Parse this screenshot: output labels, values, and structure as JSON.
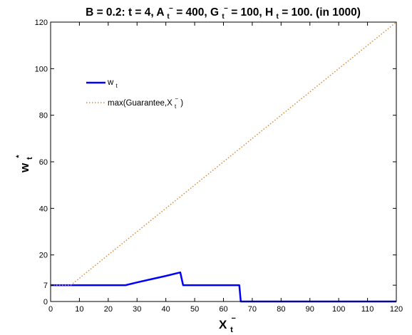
{
  "chart_data": {
    "type": "line",
    "title": {
      "parts": [
        {
          "t": "B = 0.2:   t = 4,  A"
        },
        {
          "t": "t",
          "sub": true
        },
        {
          "t": "−",
          "sup": true
        },
        {
          "t": " = 400,  G"
        },
        {
          "t": "t",
          "sub": true
        },
        {
          "t": "−",
          "sup": true
        },
        {
          "t": " = 100,  H"
        },
        {
          "t": "t",
          "sub": true
        },
        {
          "t": " = 100.  (in 1000)"
        }
      ]
    },
    "xlabel": {
      "main": "X",
      "sub": "t",
      "sup": "−"
    },
    "ylabel": {
      "main": "w",
      "sub": "t",
      "sup": "*"
    },
    "xlim": [
      0,
      120
    ],
    "ylim": [
      0,
      120
    ],
    "xticks": [
      0,
      10,
      20,
      30,
      40,
      50,
      60,
      70,
      80,
      90,
      100,
      110,
      120
    ],
    "yticks": [
      0,
      7,
      20,
      40,
      60,
      80,
      100,
      120
    ],
    "grid": false,
    "legend_position": "upper-left",
    "series": [
      {
        "legend": {
          "main": "w",
          "sub": "t"
        },
        "color": "#0000ff",
        "style": "solid",
        "x": [
          0,
          26,
          30,
          35,
          40,
          45,
          46,
          65.5,
          66,
          120
        ],
        "y": [
          7,
          7,
          8.2,
          9.6,
          11,
          12.5,
          7,
          7,
          0,
          0
        ]
      },
      {
        "legend": {
          "main": "max(Guarantee,X",
          "sub": "t",
          "sup": "−",
          "tail": ")"
        },
        "color": "#d98c3a",
        "style": "dotted",
        "x": [
          0,
          7,
          120
        ],
        "y": [
          7,
          7,
          120
        ]
      }
    ]
  }
}
